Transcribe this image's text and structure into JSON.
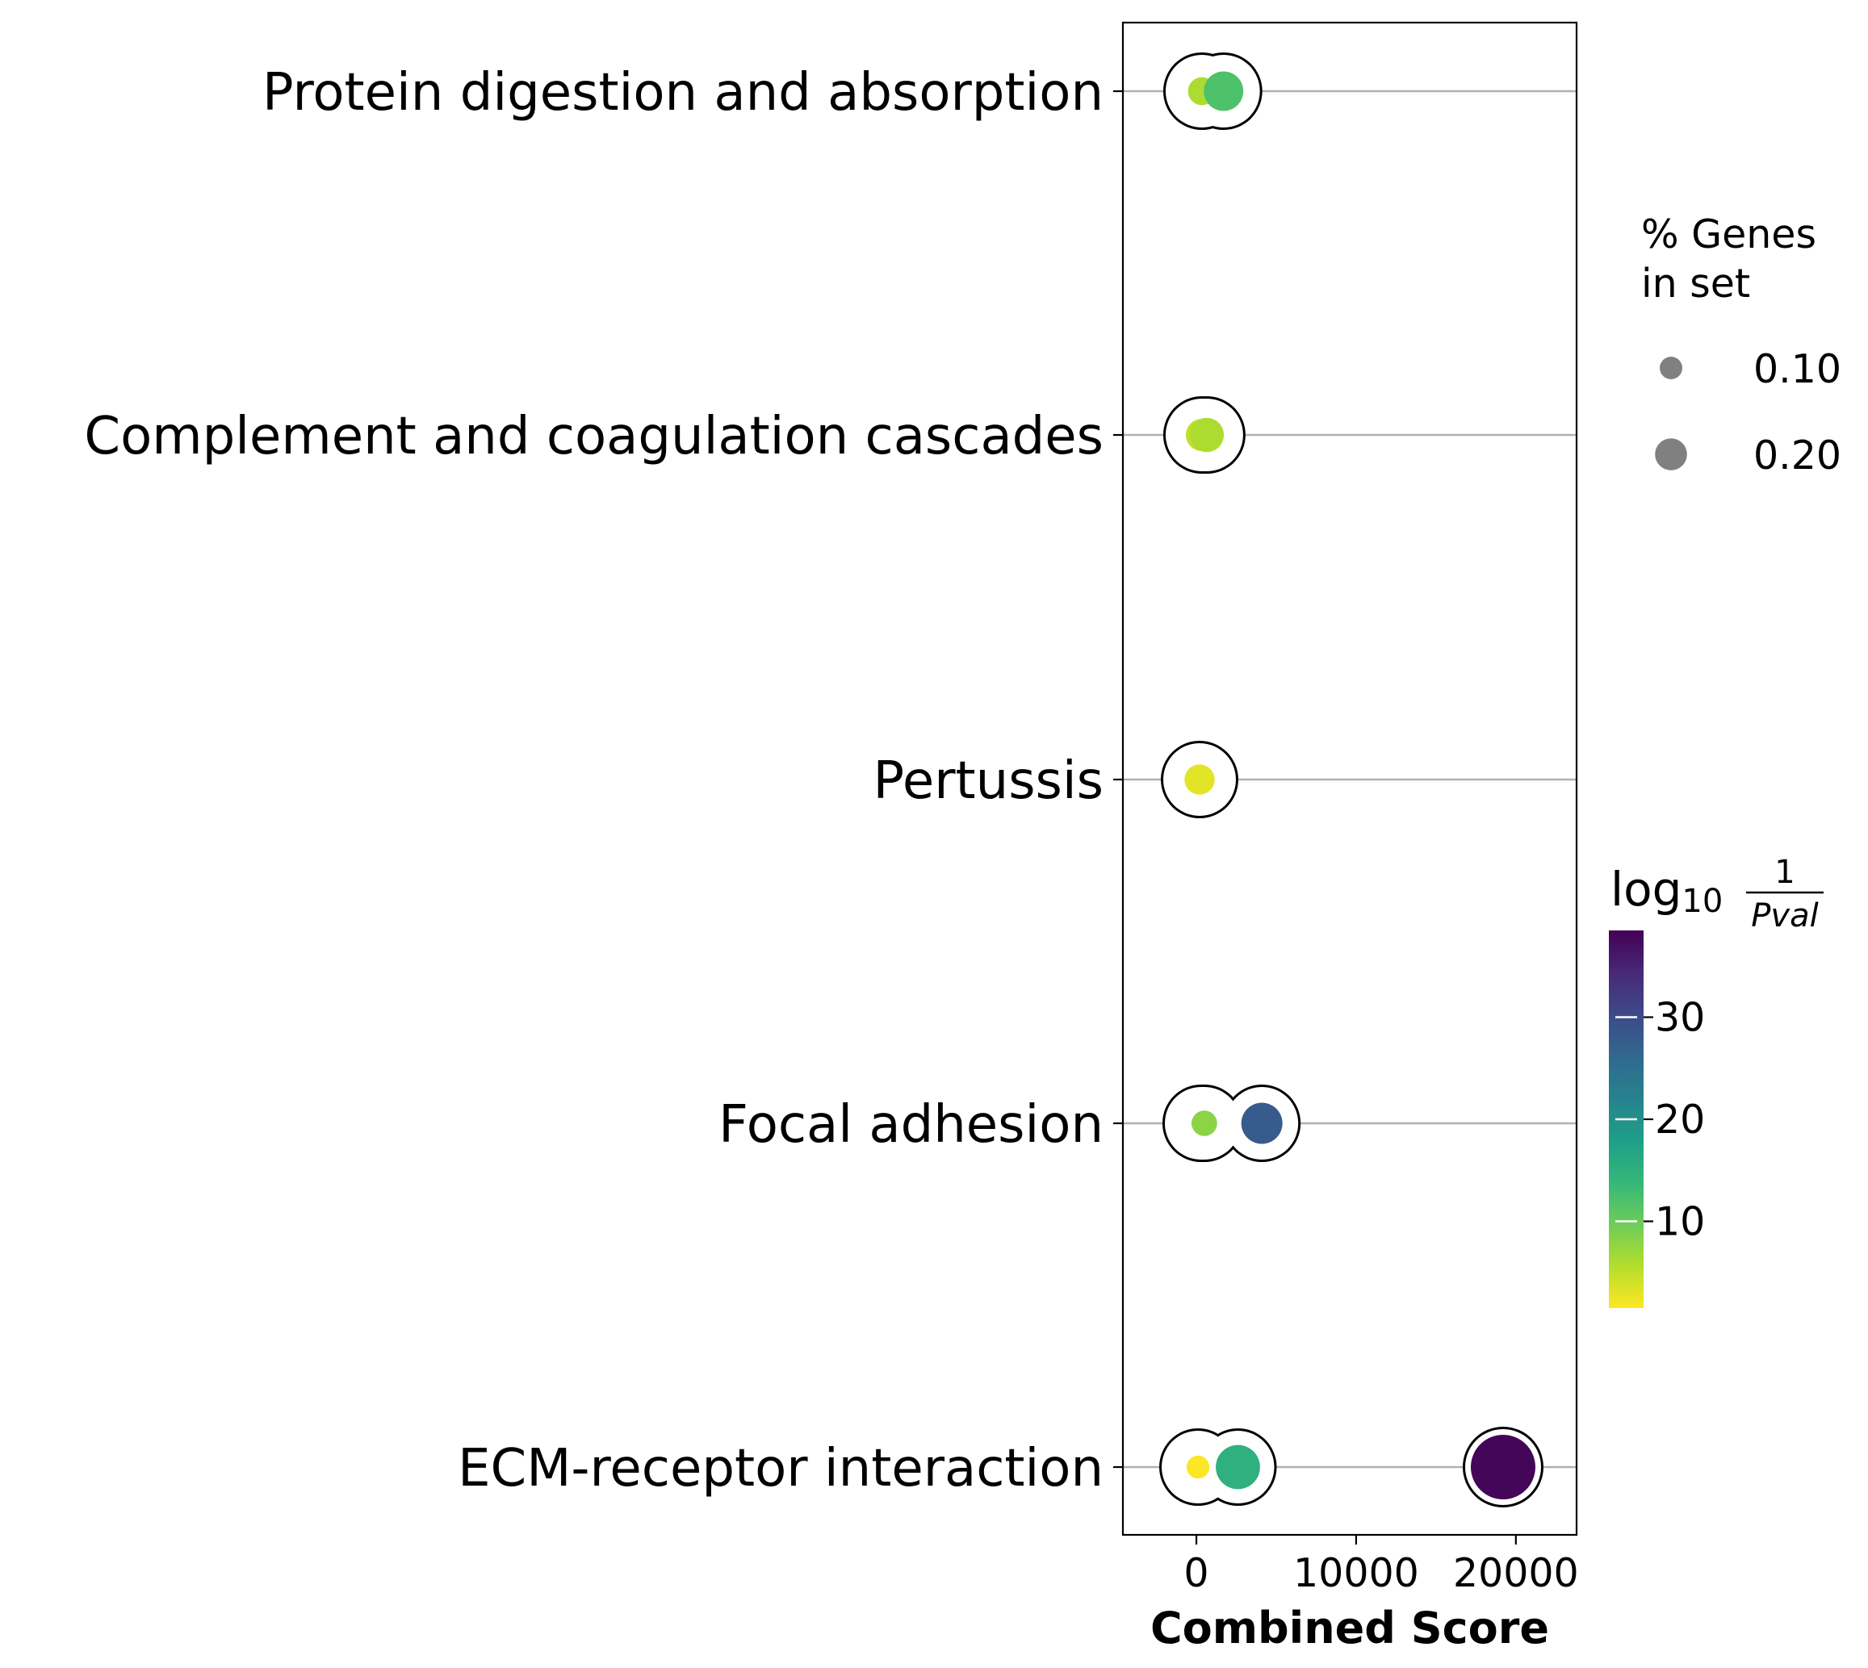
{
  "chart_data": {
    "type": "scatter",
    "xlabel": "Combined Score",
    "ylabel": "",
    "xlim": [
      -4600,
      23800
    ],
    "x_ticks": [
      0,
      10000,
      20000
    ],
    "x_tick_labels": [
      "0",
      "10000",
      "20000"
    ],
    "categories": [
      "Protein digestion and absorption",
      "Complement and coagulation cascades",
      "Pertussis",
      "Focal adhesion",
      "ECM-receptor interaction"
    ],
    "grid": "horizontal lines at each category",
    "points": [
      {
        "category": "Protein digestion and absorption",
        "x": 350,
        "pct_genes": 0.06,
        "neglog10p": 6
      },
      {
        "category": "Protein digestion and absorption",
        "x": 1700,
        "pct_genes": 0.12,
        "neglog10p": 12
      },
      {
        "category": "Complement and coagulation cascades",
        "x": 350,
        "pct_genes": 0.08,
        "neglog10p": 5
      },
      {
        "category": "Complement and coagulation cascades",
        "x": 650,
        "pct_genes": 0.09,
        "neglog10p": 6
      },
      {
        "category": "Pertussis",
        "x": 200,
        "pct_genes": 0.07,
        "neglog10p": 3
      },
      {
        "category": "Focal adhesion",
        "x": 300,
        "pct_genes": 0.03,
        "neglog10p": 3
      },
      {
        "category": "Focal adhesion",
        "x": 500,
        "pct_genes": 0.05,
        "neglog10p": 8
      },
      {
        "category": "Focal adhesion",
        "x": 4100,
        "pct_genes": 0.13,
        "neglog10p": 28
      },
      {
        "category": "ECM-receptor interaction",
        "x": 100,
        "pct_genes": 0.04,
        "neglog10p": 1.5
      },
      {
        "category": "ECM-receptor interaction",
        "x": 2600,
        "pct_genes": 0.15,
        "neglog10p": 15
      },
      {
        "category": "ECM-receptor interaction",
        "x": 19200,
        "pct_genes": 0.32,
        "neglog10p": 38
      }
    ],
    "size_legend": {
      "title_line1": "% Genes",
      "title_line2": "in set",
      "entries": [
        {
          "label": "0.10",
          "value": 0.1
        },
        {
          "label": "0.20",
          "value": 0.2
        }
      ],
      "color": "#808080"
    },
    "colorbar": {
      "title_main": "log",
      "title_sub": "10",
      "title_num": "1",
      "title_den": "Pval",
      "range": [
        1.5,
        38.5
      ],
      "ticks": [
        10,
        20,
        30
      ],
      "tick_labels": [
        "10",
        "20",
        "30"
      ],
      "colormap": "viridis_r"
    }
  }
}
